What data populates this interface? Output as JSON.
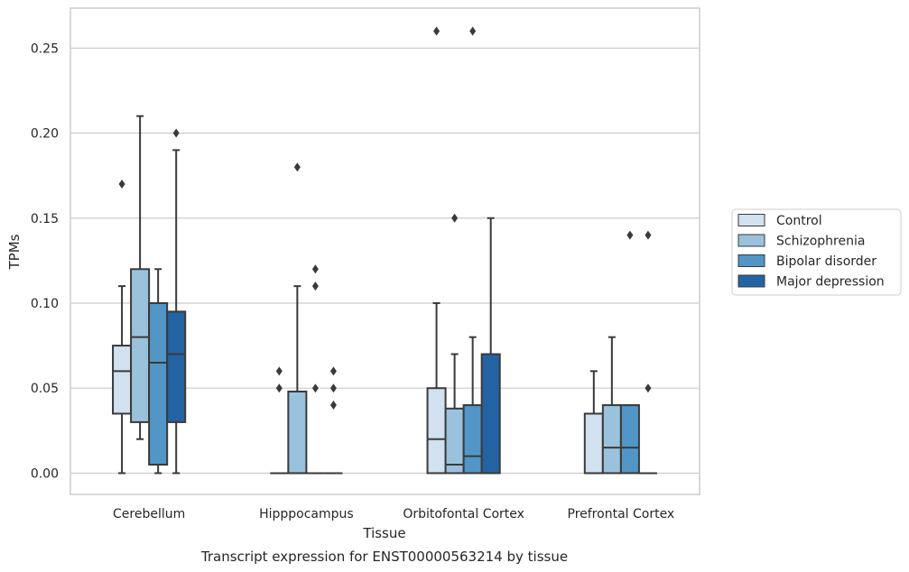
{
  "chart_data": {
    "type": "box",
    "title": "",
    "caption": "Transcript expression for ENST00000563214 by tissue",
    "xlabel": "Tissue",
    "ylabel": "TPMs",
    "ylim": [
      -0.0125,
      0.2735
    ],
    "yticks": [
      0.0,
      0.05,
      0.1,
      0.15,
      0.2,
      0.25
    ],
    "ytick_labels": [
      "0.00",
      "0.05",
      "0.10",
      "0.15",
      "0.20",
      "0.25"
    ],
    "grid": true,
    "legend_position": "right",
    "categories": [
      "Cerebellum",
      "Hipppocampus",
      "Orbitofontal Cortex",
      "Prefrontal Cortex"
    ],
    "series": [
      {
        "name": "Control",
        "color": "#d1e1f0",
        "boxes": [
          {
            "q1": 0.035,
            "median": 0.06,
            "q3": 0.075,
            "whisker_low": 0.0,
            "whisker_high": 0.11,
            "outliers": [
              0.17
            ]
          },
          {
            "q1": 0.0,
            "median": 0.0,
            "q3": 0.0,
            "whisker_low": 0.0,
            "whisker_high": 0.0,
            "outliers": [
              0.05,
              0.06
            ]
          },
          {
            "q1": 0.0,
            "median": 0.02,
            "q3": 0.05,
            "whisker_low": 0.0,
            "whisker_high": 0.1,
            "outliers": [
              0.26
            ]
          },
          {
            "q1": 0.0,
            "median": 0.0,
            "q3": 0.035,
            "whisker_low": 0.0,
            "whisker_high": 0.06,
            "outliers": []
          }
        ]
      },
      {
        "name": "Schizophrenia",
        "color": "#9ac2dc",
        "boxes": [
          {
            "q1": 0.03,
            "median": 0.08,
            "q3": 0.12,
            "whisker_low": 0.02,
            "whisker_high": 0.21,
            "outliers": []
          },
          {
            "q1": 0.0,
            "median": 0.0,
            "q3": 0.048,
            "whisker_low": 0.0,
            "whisker_high": 0.11,
            "outliers": [
              0.18
            ]
          },
          {
            "q1": 0.0,
            "median": 0.005,
            "q3": 0.038,
            "whisker_low": 0.0,
            "whisker_high": 0.07,
            "outliers": [
              0.15
            ]
          },
          {
            "q1": 0.0,
            "median": 0.015,
            "q3": 0.04,
            "whisker_low": 0.0,
            "whisker_high": 0.08,
            "outliers": []
          }
        ]
      },
      {
        "name": "Bipolar disorder",
        "color": "#5196c6",
        "boxes": [
          {
            "q1": 0.005,
            "median": 0.065,
            "q3": 0.1,
            "whisker_low": 0.0,
            "whisker_high": 0.12,
            "outliers": []
          },
          {
            "q1": 0.0,
            "median": 0.0,
            "q3": 0.0,
            "whisker_low": 0.0,
            "whisker_high": 0.0,
            "outliers": [
              0.05,
              0.11,
              0.12
            ]
          },
          {
            "q1": 0.0,
            "median": 0.01,
            "q3": 0.04,
            "whisker_low": 0.0,
            "whisker_high": 0.08,
            "outliers": [
              0.26
            ]
          },
          {
            "q1": 0.0,
            "median": 0.015,
            "q3": 0.04,
            "whisker_low": 0.0,
            "whisker_high": 0.04,
            "outliers": [
              0.14
            ]
          }
        ]
      },
      {
        "name": "Major depression",
        "color": "#2363a3",
        "boxes": [
          {
            "q1": 0.03,
            "median": 0.07,
            "q3": 0.095,
            "whisker_low": 0.0,
            "whisker_high": 0.19,
            "outliers": [
              0.2
            ]
          },
          {
            "q1": 0.0,
            "median": 0.0,
            "q3": 0.0,
            "whisker_low": 0.0,
            "whisker_high": 0.0,
            "outliers": [
              0.04,
              0.05,
              0.06
            ]
          },
          {
            "q1": 0.0,
            "median": 0.0,
            "q3": 0.07,
            "whisker_low": 0.0,
            "whisker_high": 0.15,
            "outliers": []
          },
          {
            "q1": 0.0,
            "median": 0.0,
            "q3": 0.0,
            "whisker_low": 0.0,
            "whisker_high": 0.0,
            "outliers": [
              0.05,
              0.14
            ]
          }
        ]
      }
    ]
  },
  "colors": {
    "grid": "#cccccc",
    "axes_frame": "#cccccc",
    "box_edge": "#3a3a3a",
    "background": "#ffffff"
  }
}
